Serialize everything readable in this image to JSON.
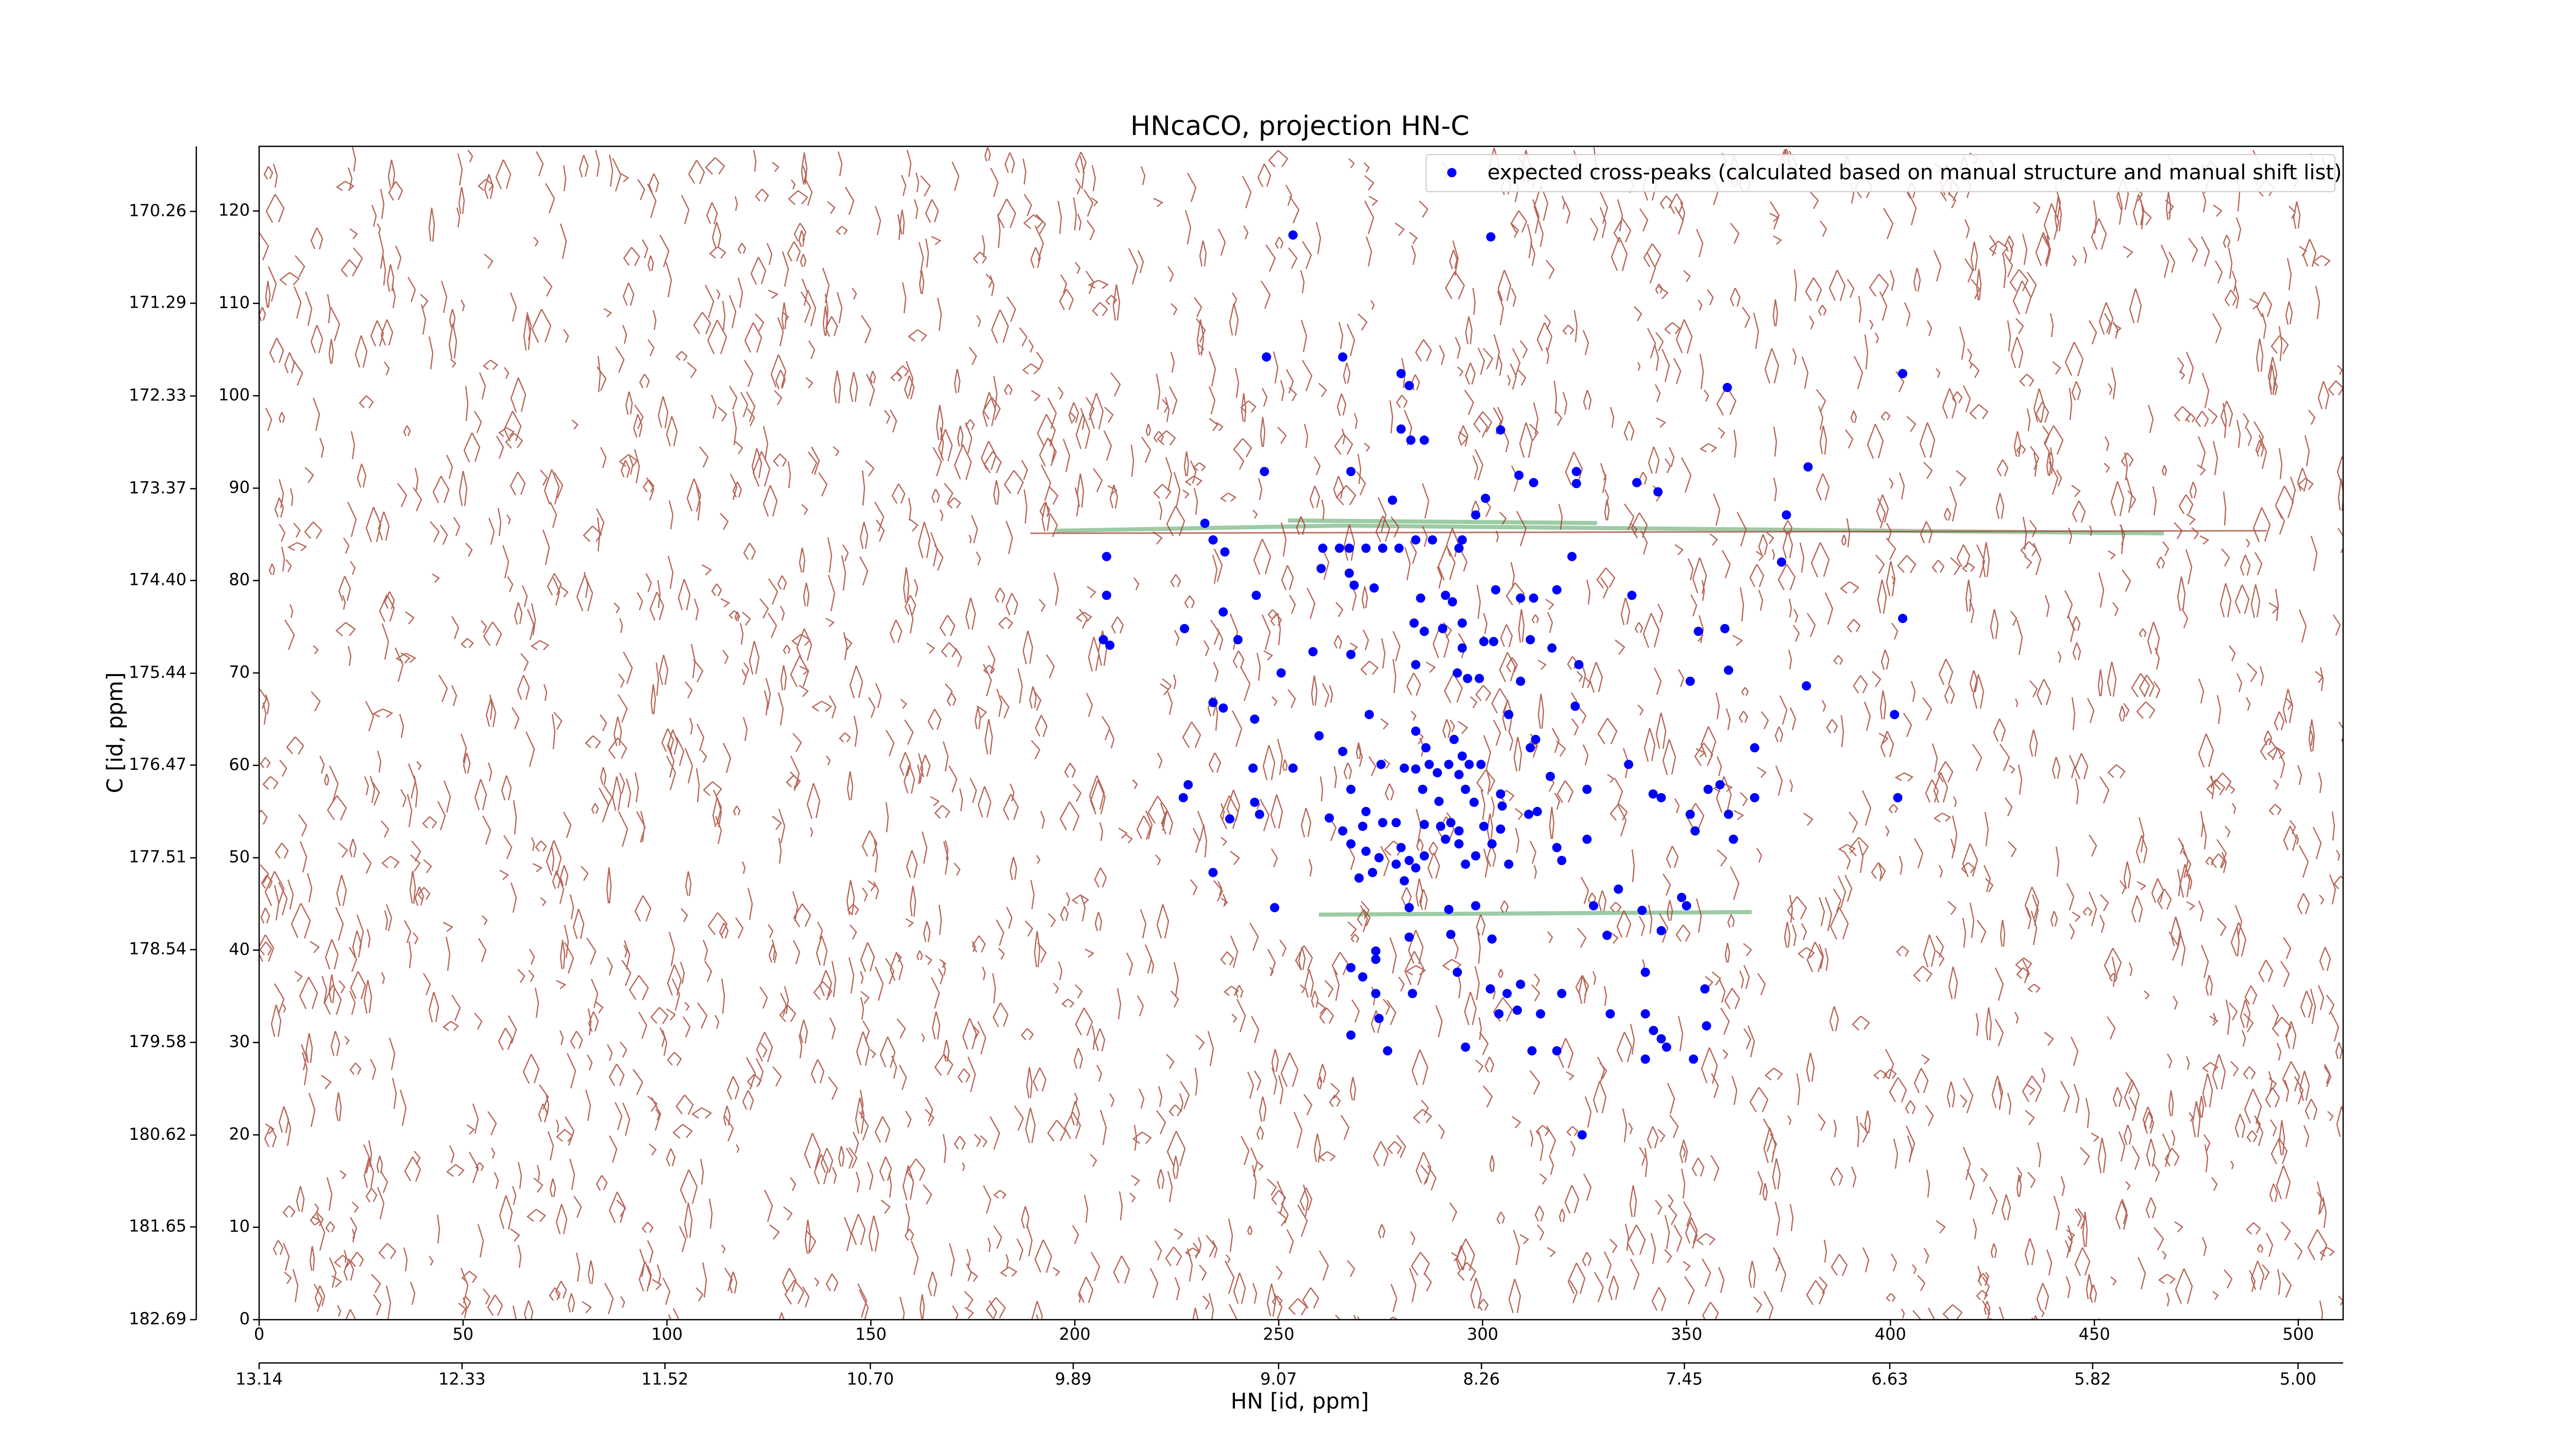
{
  "chart_data": {
    "type": "scatter",
    "title": "HNcaCO, projection HN-C",
    "xlabel": "HN [id, ppm]",
    "ylabel": "C [id, ppm]",
    "xlim": [
      0,
      511
    ],
    "xticks": [
      0,
      50,
      100,
      150,
      200,
      250,
      300,
      350,
      400,
      450,
      500
    ],
    "ylim": [
      0,
      127
    ],
    "yticks": [
      0,
      10,
      20,
      30,
      40,
      50,
      60,
      70,
      80,
      90,
      100,
      110,
      120
    ],
    "x2lim": [
      13.14,
      4.82
    ],
    "x2ticks": [
      13.14,
      12.33,
      11.52,
      {
        "value": 10.7,
        "label": "10.70"
      },
      9.89,
      9.07,
      8.26,
      7.45,
      6.63,
      5.82,
      {
        "value": 5.0,
        "label": "5.00"
      }
    ],
    "y2lim": [
      182.69,
      169.53
    ],
    "y2ticks": [
      170.26,
      171.29,
      172.33,
      173.37,
      {
        "value": 174.4,
        "label": "174.40"
      },
      175.44,
      176.47,
      177.51,
      178.54,
      179.58,
      180.62,
      181.65,
      182.69
    ],
    "legend": "upper right",
    "series": [
      {
        "name": "expected cross-peaks (calculated based on manual structure and manual shift list)",
        "color": "#0000ff",
        "x": [
          253.5,
          302,
          247,
          265.7,
          280,
          282,
          403,
          360,
          280,
          282.4,
          285.7,
          304.4,
          379.8,
          246.5,
          267.7,
          323,
          323,
          312.5,
          337.8,
          343,
          277.9,
          308.9,
          300.7,
          374.5,
          231.9,
          233.9,
          236.8,
          260.8,
          264.9,
          267.3,
          271.4,
          275.5,
          279.5,
          283.6,
          287.7,
          295,
          298.3,
          294.2,
          207.8,
          321.9,
          373.3,
          260.4,
          267.3,
          207.8,
          268.5,
          273.4,
          244.5,
          284.8,
          290.9,
          292.6,
          303.2,
          309.3,
          312.5,
          318.2,
          336.6,
          403,
          226.9,
          236.4,
          240,
          207,
          208.6,
          258.4,
          267.7,
          283.2,
          285.7,
          290.2,
          295,
          295,
          300.3,
          302.7,
          311.7,
          317,
          352.9,
          359.4,
          250.6,
          283.6,
          293.8,
          296.3,
          299.2,
          309.3,
          323.6,
          350.9,
          360.3,
          379.4,
          233.9,
          236.4,
          244.1,
          272.2,
          306.4,
          322.7,
          401,
          259.9,
          265.7,
          283.6,
          286.1,
          293,
          295,
          296.7,
          299.6,
          311.7,
          313,
          316.6,
          335.8,
          366.7,
          243.7,
          227.8,
          226.6,
          253.5,
          275.1,
          280.8,
          283.6,
          286.9,
          288.9,
          291.7,
          294.2,
          355.3,
          358.2,
          366.7,
          401.8,
          244.1,
          245.3,
          267.7,
          271.4,
          285.3,
          289.3,
          295.8,
          297.9,
          304.4,
          304.8,
          313.4,
          325.6,
          341.8,
          343.8,
          350.9,
          238,
          262.4,
          265.7,
          270.6,
          275.5,
          278.8,
          285.7,
          289.7,
          292.2,
          294.2,
          300.3,
          304.4,
          311.3,
          360.3,
          352.1,
          267.7,
          271.4,
          274.6,
          280,
          282,
          285.7,
          290.9,
          294.2,
          298.3,
          302.3,
          318.2,
          325.6,
          361.5,
          278.8,
          283.6,
          280.8,
          295.8,
          306.4,
          319.4,
          233.9,
          269.7,
          273,
          298.3,
          327.2,
          333.3,
          348.8,
          350,
          249,
          282,
          291.7,
          339.1,
          343.8,
          273.8,
          282,
          292.2,
          302.3,
          330.5,
          339.9,
          267.7,
          273.8,
          270.6,
          293.8,
          301.9,
          306,
          309.3,
          273.8,
          282.8,
          319.4,
          304,
          308.5,
          314.2,
          331.3,
          339.9,
          341.9,
          354.5,
          354.9,
          274.6,
          267.7,
          343.8,
          345.1,
          351.7,
          276.7,
          295.8,
          312.1,
          318.2,
          339.9,
          324.4
        ],
        "values": [
          117.4,
          117.2,
          104.2,
          104.2,
          102.4,
          101.1,
          102.4,
          100.9,
          96.4,
          95.2,
          95.2,
          96.3,
          92.3,
          91.8,
          91.8,
          91.8,
          90.5,
          90.6,
          90.6,
          89.6,
          88.7,
          91.4,
          88.9,
          87.1,
          86.2,
          84.4,
          83.1,
          83.5,
          83.5,
          83.5,
          83.5,
          83.5,
          83.5,
          84.4,
          84.4,
          84.4,
          87.1,
          83.5,
          82.6,
          82.6,
          82,
          81.3,
          80.8,
          78.4,
          79.5,
          79.2,
          78.4,
          78.1,
          78.4,
          77.7,
          79,
          78.1,
          78.1,
          79,
          78.4,
          75.9,
          74.8,
          76.6,
          73.6,
          73.6,
          73,
          72.3,
          72,
          75.4,
          74.5,
          74.8,
          75.4,
          72.7,
          73.4,
          73.4,
          73.6,
          72.7,
          74.5,
          74.8,
          70,
          70.9,
          70,
          69.4,
          69.4,
          69.1,
          70.9,
          69.1,
          70.3,
          68.6,
          66.8,
          66.2,
          65,
          65.5,
          65.5,
          66.4,
          65.5,
          63.2,
          61.5,
          63.7,
          61.9,
          62.8,
          61,
          60.1,
          60.1,
          61.9,
          62.8,
          58.8,
          60.1,
          61.9,
          59.7,
          57.9,
          56.5,
          59.7,
          60.1,
          59.7,
          59.6,
          60.1,
          59.2,
          60.1,
          59,
          57.4,
          57.9,
          56.5,
          56.5,
          56,
          54.7,
          57.4,
          55,
          57.4,
          56.1,
          57.4,
          56,
          56.9,
          55.6,
          55,
          57.4,
          56.9,
          56.5,
          54.7,
          54.2,
          54.3,
          52.9,
          53.4,
          53.8,
          53.8,
          53.6,
          53.4,
          53.8,
          52.9,
          53.4,
          53.1,
          54.7,
          54.7,
          52.9,
          51.5,
          50.7,
          50,
          51.1,
          49.7,
          50.2,
          52,
          51.5,
          50.2,
          51.5,
          51.1,
          52,
          52,
          49.3,
          48.9,
          47.5,
          49.3,
          49.3,
          49.7,
          48.4,
          47.8,
          48.4,
          44.8,
          44.8,
          46.6,
          45.7,
          44.8,
          44.6,
          44.6,
          44.4,
          44.3,
          42.1,
          39.9,
          41.4,
          41.7,
          41.2,
          41.6,
          37.6,
          38.1,
          39,
          37.1,
          37.6,
          35.8,
          35.3,
          36.3,
          35.3,
          35.3,
          35.3,
          33.1,
          33.5,
          33.1,
          33.1,
          33.1,
          31.3,
          35.8,
          31.8,
          32.6,
          30.8,
          30.4,
          29.5,
          28.2,
          29.1,
          29.5,
          29.1,
          29.1,
          28.2,
          20
        ]
      }
    ]
  }
}
